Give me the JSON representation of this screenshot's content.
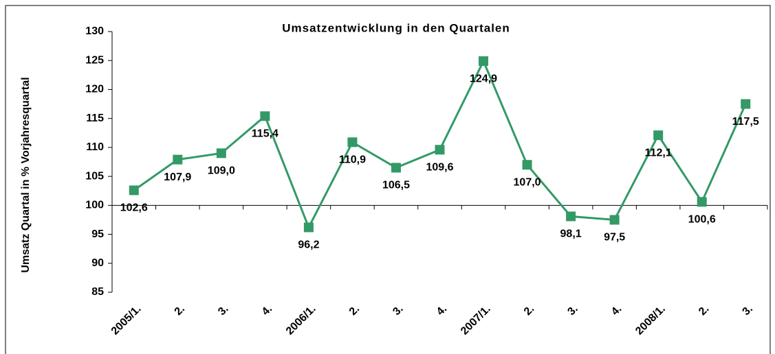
{
  "chart_data": {
    "type": "line",
    "title": "Umsatzentwicklung in den Quartalen",
    "y_label": "Umsatz Quartal in % Vorjahresquartal",
    "categories": [
      "2005/1.",
      "2.",
      "3.",
      "4.",
      "2006/1.",
      "2.",
      "3.",
      "4.",
      "2007/1.",
      "2.",
      "3.",
      "4.",
      "2008/1.",
      "2.",
      "3."
    ],
    "series": [
      {
        "color": "#339966",
        "values": [
          102.6,
          107.9,
          109.0,
          115.4,
          96.2,
          110.9,
          106.5,
          109.6,
          124.9,
          107.0,
          98.1,
          97.5,
          112.1,
          100.6,
          117.5
        ],
        "value_labels": [
          "102,6",
          "107,9",
          "109,0",
          "115,4",
          "96,2",
          "110,9",
          "106,5",
          "109,6",
          "124,9",
          "107,0",
          "98,1",
          "97,5",
          "112,1",
          "100,6",
          "117,5"
        ]
      }
    ],
    "ylim": [
      85,
      130
    ],
    "yticks": [
      85,
      90,
      95,
      100,
      105,
      110,
      115,
      120,
      125,
      130
    ],
    "x_axis_at": 100
  }
}
